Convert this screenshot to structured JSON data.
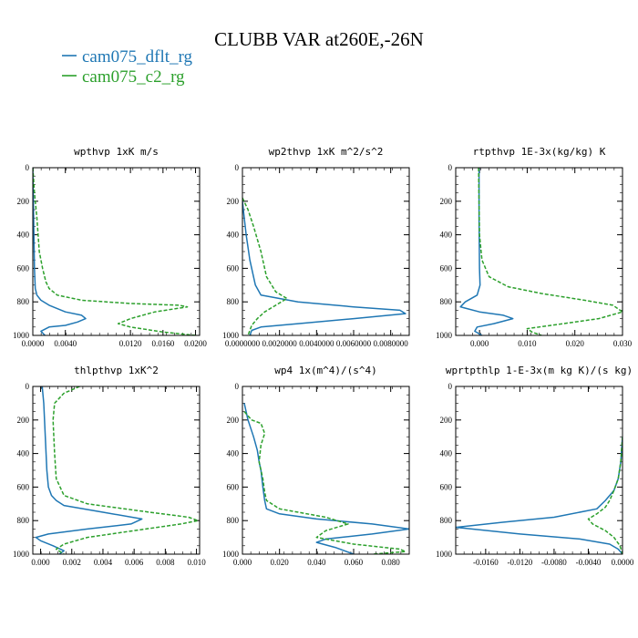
{
  "figure": {
    "title": "CLUBB VAR at260E,-26N",
    "legend": [
      {
        "label": "cam075_dflt_rg",
        "color": "#1f77b4",
        "dash": false
      },
      {
        "label": "cam075_c2_rg",
        "color": "#2ca02c",
        "dash": true
      }
    ]
  },
  "chart_data": [
    {
      "type": "line",
      "title": "wpthvp  1xK m/s",
      "xlim": [
        0,
        0.0205
      ],
      "ylim": [
        1000,
        0
      ],
      "xticks": [
        "0.0000",
        "0.0040",
        "0.0120",
        "0.0160",
        "0.0200"
      ],
      "xtick_values": [
        0,
        0.004,
        0.012,
        0.016,
        0.02
      ],
      "yticks": [
        "0",
        "200",
        "400",
        "600",
        "800",
        "1000"
      ],
      "ytick_values": [
        0,
        200,
        400,
        600,
        800,
        1000
      ],
      "series": [
        {
          "name": "cam075_dflt_rg",
          "color": "#1f77b4",
          "dash": false,
          "x": [
            0,
            0.0001,
            0.0002,
            0.0003,
            0.0005,
            0.001,
            0.002,
            0.004,
            0.006,
            0.0065,
            0.0055,
            0.004,
            0.002,
            0.001,
            0.0015
          ],
          "y": [
            0,
            300,
            600,
            720,
            760,
            790,
            820,
            860,
            880,
            900,
            920,
            940,
            950,
            975,
            1000
          ]
        },
        {
          "name": "cam075_c2_rg",
          "color": "#2ca02c",
          "dash": true,
          "x": [
            0,
            0.0002,
            0.0005,
            0.0008,
            0.0012,
            0.0016,
            0.002,
            0.003,
            0.006,
            0.012,
            0.018,
            0.019,
            0.015,
            0.012,
            0.0105,
            0.012,
            0.016,
            0.02
          ],
          "y": [
            0,
            150,
            300,
            500,
            600,
            680,
            720,
            760,
            790,
            810,
            820,
            830,
            860,
            900,
            930,
            950,
            980,
            1000
          ]
        }
      ]
    },
    {
      "type": "line",
      "title": "wp2thvp  1xK m^2/s^2",
      "xlim": [
        0,
        0.009
      ],
      "ylim": [
        1000,
        0
      ],
      "xticks": [
        "0.0000000",
        "0.0020000",
        "0.0040000",
        "0.0060000",
        "0.0080000"
      ],
      "xtick_values": [
        0,
        0.002,
        0.004,
        0.006,
        0.008
      ],
      "yticks": [
        "0",
        "200",
        "400",
        "600",
        "800",
        "1000"
      ],
      "ytick_values": [
        0,
        200,
        400,
        600,
        800,
        1000
      ],
      "series": [
        {
          "name": "cam075_dflt_rg",
          "color": "#1f77b4",
          "dash": false,
          "x": [
            0,
            0.0001,
            0.0002,
            0.0004,
            0.0007,
            0.001,
            0.003,
            0.006,
            0.0085,
            0.0088,
            0.006,
            0.003,
            0.001,
            0.0005,
            0.0004
          ],
          "y": [
            200,
            300,
            400,
            550,
            700,
            760,
            800,
            830,
            850,
            870,
            900,
            930,
            950,
            970,
            1000
          ]
        },
        {
          "name": "cam075_c2_rg",
          "color": "#2ca02c",
          "dash": true,
          "x": [
            0,
            0.0003,
            0.0006,
            0.001,
            0.0013,
            0.0018,
            0.0024,
            0.0018,
            0.0012,
            0.0008,
            0.0005,
            0.0004,
            0.0003
          ],
          "y": [
            180,
            250,
            350,
            500,
            650,
            740,
            780,
            820,
            860,
            900,
            940,
            970,
            1000
          ]
        }
      ]
    },
    {
      "type": "line",
      "title": "rtpthvp  1E-3x(kg/kg) K",
      "xlim": [
        -0.005,
        0.03
      ],
      "ylim": [
        1000,
        0
      ],
      "xticks": [
        "0.000",
        "0.010",
        "0.020",
        "0.030"
      ],
      "xtick_values": [
        0,
        0.01,
        0.02,
        0.03
      ],
      "yticks": [
        "0",
        "200",
        "400",
        "600",
        "800",
        "1000"
      ],
      "ytick_values": [
        0,
        200,
        400,
        600,
        800,
        1000
      ],
      "series": [
        {
          "name": "cam075_dflt_rg",
          "color": "#1f77b4",
          "dash": false,
          "x": [
            -0.0001,
            -0.0001,
            0.0,
            0.0001,
            -0.0005,
            -0.003,
            -0.004,
            0.0,
            0.005,
            0.007,
            0.003,
            -0.0005,
            -0.001,
            0.0005
          ],
          "y": [
            0,
            300,
            600,
            700,
            760,
            800,
            830,
            860,
            880,
            900,
            930,
            950,
            975,
            1000
          ]
        },
        {
          "name": "cam075_c2_rg",
          "color": "#2ca02c",
          "dash": true,
          "x": [
            -0.0002,
            -0.0001,
            0.0,
            0.0005,
            0.002,
            0.006,
            0.013,
            0.022,
            0.028,
            0.03,
            0.025,
            0.015,
            0.01,
            0.011,
            0.013
          ],
          "y": [
            0,
            200,
            400,
            550,
            650,
            710,
            750,
            790,
            820,
            860,
            900,
            940,
            960,
            980,
            1000
          ]
        }
      ]
    },
    {
      "type": "line",
      "title": "thlpthvp  1xK^2",
      "xlim": [
        -0.0005,
        0.0102
      ],
      "ylim": [
        1000,
        0
      ],
      "xticks": [
        "0.000",
        "0.002",
        "0.004",
        "0.006",
        "0.008",
        "0.010"
      ],
      "xtick_values": [
        0,
        0.002,
        0.004,
        0.006,
        0.008,
        0.01
      ],
      "yticks": [
        "0",
        "200",
        "400",
        "600",
        "800",
        "1000"
      ],
      "ytick_values": [
        0,
        200,
        400,
        600,
        800,
        1000
      ],
      "series": [
        {
          "name": "cam075_dflt_rg",
          "color": "#1f77b4",
          "dash": false,
          "x": [
            0.0001,
            0.0002,
            0.0003,
            0.0004,
            0.0005,
            0.0007,
            0.001,
            0.0015,
            0.004,
            0.0065,
            0.0058,
            0.003,
            0.0005,
            -0.0003,
            0.0,
            0.0008,
            0.0015,
            0.0012
          ],
          "y": [
            0,
            100,
            300,
            500,
            600,
            650,
            680,
            710,
            750,
            790,
            820,
            850,
            880,
            900,
            920,
            950,
            980,
            1000
          ]
        },
        {
          "name": "cam075_c2_rg",
          "color": "#2ca02c",
          "dash": true,
          "x": [
            0.0025,
            0.0015,
            0.0009,
            0.0008,
            0.0009,
            0.001,
            0.0015,
            0.003,
            0.007,
            0.0095,
            0.0101,
            0.009,
            0.006,
            0.003,
            0.0015,
            0.001,
            0.0015
          ],
          "y": [
            0,
            40,
            100,
            200,
            400,
            550,
            650,
            700,
            750,
            780,
            800,
            820,
            860,
            900,
            940,
            970,
            1000
          ]
        }
      ]
    },
    {
      "type": "line",
      "title": "wp4  1x(m^4)/(s^4)",
      "xlim": [
        0,
        0.09
      ],
      "ylim": [
        1000,
        0
      ],
      "xticks": [
        "0.000",
        "0.020",
        "0.040",
        "0.060",
        "0.080"
      ],
      "xtick_values": [
        0,
        0.02,
        0.04,
        0.06,
        0.08
      ],
      "yticks": [
        "0",
        "200",
        "400",
        "600",
        "800",
        "1000"
      ],
      "ytick_values": [
        0,
        200,
        400,
        600,
        800,
        1000
      ],
      "series": [
        {
          "name": "cam075_dflt_rg",
          "color": "#1f77b4",
          "dash": false,
          "x": [
            0.001,
            0.003,
            0.006,
            0.008,
            0.009,
            0.01,
            0.011,
            0.012,
            0.013,
            0.02,
            0.04,
            0.07,
            0.09,
            0.07,
            0.045,
            0.04,
            0.05,
            0.06
          ],
          "y": [
            100,
            200,
            300,
            380,
            450,
            500,
            600,
            680,
            730,
            760,
            790,
            820,
            850,
            880,
            910,
            930,
            960,
            1000
          ]
        },
        {
          "name": "cam075_c2_rg",
          "color": "#2ca02c",
          "dash": true,
          "x": [
            0.001,
            0.005,
            0.01,
            0.012,
            0.01,
            0.009,
            0.011,
            0.012,
            0.013,
            0.02,
            0.045,
            0.057,
            0.045,
            0.04,
            0.06,
            0.085,
            0.088,
            0.07
          ],
          "y": [
            150,
            200,
            220,
            280,
            350,
            450,
            550,
            630,
            680,
            730,
            780,
            820,
            860,
            900,
            940,
            970,
            985,
            1000
          ]
        }
      ]
    },
    {
      "type": "line",
      "title": "wprtpthlp  1-E-3x(m kg K)/(s kg)",
      "xlim": [
        -0.0195,
        0.0
      ],
      "ylim": [
        1000,
        0
      ],
      "xticks": [
        "-0.0160",
        "-0.0120",
        "-0.0080",
        "-0.0040",
        "0.0000"
      ],
      "xtick_values": [
        -0.016,
        -0.012,
        -0.008,
        -0.004,
        0.0
      ],
      "yticks": [
        "0",
        "200",
        "400",
        "600",
        "800",
        "1000"
      ],
      "ytick_values": [
        0,
        200,
        400,
        600,
        800,
        1000
      ],
      "series": [
        {
          "name": "cam075_dflt_rg",
          "color": "#1f77b4",
          "dash": false,
          "x": [
            0.0,
            -0.0002,
            -0.0005,
            -0.001,
            -0.002,
            -0.003,
            -0.008,
            -0.014,
            -0.0195,
            -0.012,
            -0.005,
            -0.0015,
            -0.0005,
            0.0
          ],
          "y": [
            300,
            450,
            550,
            620,
            680,
            730,
            780,
            810,
            840,
            880,
            910,
            940,
            970,
            1000
          ]
        },
        {
          "name": "cam075_c2_rg",
          "color": "#2ca02c",
          "dash": true,
          "x": [
            0.0,
            -0.0002,
            -0.0005,
            -0.001,
            -0.0015,
            -0.002,
            -0.003,
            -0.004,
            -0.0035,
            -0.002,
            -0.001,
            -0.0003,
            0.0
          ],
          "y": [
            300,
            450,
            550,
            620,
            680,
            720,
            760,
            790,
            820,
            860,
            900,
            950,
            1000
          ]
        }
      ]
    }
  ]
}
